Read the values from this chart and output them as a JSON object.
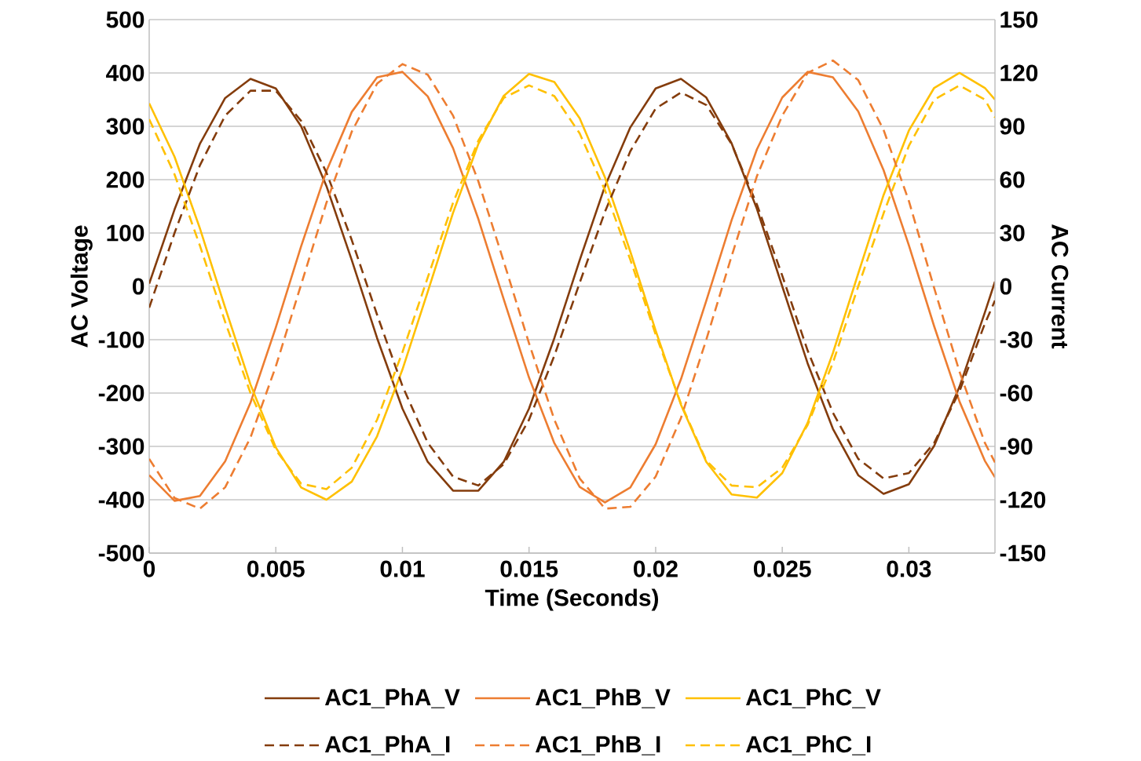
{
  "chart_data": {
    "type": "line",
    "xlabel": "Time (Seconds)",
    "ylabel": "AC Voltage",
    "y2label": "AC Current",
    "x": [
      0,
      0.001,
      0.002,
      0.003,
      0.004,
      0.005,
      0.006,
      0.007,
      0.008,
      0.009,
      0.01,
      0.011,
      0.012,
      0.013,
      0.014,
      0.015,
      0.016,
      0.017,
      0.018,
      0.019,
      0.02,
      0.021,
      0.022,
      0.023,
      0.024,
      0.025,
      0.026,
      0.027,
      0.028,
      0.029,
      0.03,
      0.031,
      0.032,
      0.033,
      0.0334
    ],
    "series": [
      {
        "name": "AC1_PhA_V",
        "color": "#843c0c",
        "values": [
          5,
          144,
          267,
          353,
          389,
          371,
          300,
          188,
          49,
          -97,
          -229,
          -329,
          -383,
          -383,
          -329,
          -229,
          -97,
          49,
          188,
          298,
          371,
          389,
          354,
          268,
          145,
          0,
          -144,
          -267,
          -354,
          -389,
          -371,
          -299,
          -188,
          -49,
          9
        ]
      },
      {
        "name": "AC1_PhB_V",
        "color": "#ed7d31",
        "values": [
          -354,
          -402,
          -393,
          -328,
          -218,
          -77,
          75,
          216,
          327,
          392,
          402,
          356,
          259,
          126,
          -24,
          -171,
          -294,
          -376,
          -405,
          -377,
          -296,
          -174,
          -27,
          124,
          257,
          354,
          402,
          392,
          328,
          218,
          77,
          -75,
          -216,
          -327,
          -358
        ]
      },
      {
        "name": "AC1_PhC_V",
        "color": "#ffc000",
        "values": [
          343,
          243,
          109,
          -40,
          -184,
          -302,
          -377,
          -400,
          -366,
          -281,
          -156,
          -10,
          138,
          267,
          357,
          398,
          383,
          315,
          204,
          65,
          -83,
          -222,
          -329,
          -390,
          -396,
          -350,
          -256,
          -125,
          24,
          171,
          292,
          372,
          400,
          372,
          350
        ]
      },
      {
        "name": "AC1_PhA_I",
        "color": "#843c0c",
        "axis": "y2",
        "line_style": "dashed",
        "values": [
          -12,
          30,
          68,
          96,
          110,
          110,
          93,
          64,
          26,
          -16,
          -56,
          -88,
          -107,
          -112,
          -100,
          -75,
          -39,
          2,
          42,
          76,
          100,
          109,
          102,
          80,
          46,
          6,
          -36,
          -71,
          -97,
          -108,
          -105,
          -88,
          -59,
          -21,
          -8
        ]
      },
      {
        "name": "AC1_PhB_I",
        "color": "#ed7d31",
        "axis": "y2",
        "line_style": "dashed",
        "values": [
          -97,
          -119,
          -125,
          -113,
          -85,
          -45,
          1,
          47,
          87,
          114,
          125,
          119,
          96,
          59,
          14,
          -32,
          -75,
          -108,
          -125,
          -124,
          -107,
          -74,
          -30,
          17,
          62,
          96,
          120,
          127,
          116,
          88,
          48,
          -1,
          -48,
          -88,
          -99
        ]
      },
      {
        "name": "AC1_PhC_I",
        "color": "#ffc000",
        "axis": "y2",
        "line_style": "dashed",
        "values": [
          94,
          63,
          23,
          -20,
          -60,
          -92,
          -111,
          -114,
          -102,
          -75,
          -37,
          5,
          47,
          82,
          106,
          113,
          107,
          86,
          54,
          15,
          -27,
          -66,
          -98,
          -112,
          -113,
          -102,
          -78,
          -43,
          0,
          41,
          79,
          105,
          113,
          105,
          95
        ]
      }
    ],
    "xlim": [
      0,
      0.0334
    ],
    "xticks": [
      0,
      0.005,
      0.01,
      0.015,
      0.02,
      0.025,
      0.03
    ],
    "ylim": [
      -500,
      500
    ],
    "yticks": [
      -500,
      -400,
      -300,
      -200,
      -100,
      0,
      100,
      200,
      300,
      400,
      500
    ],
    "y2lim": [
      -150,
      150
    ],
    "y2ticks": [
      -150,
      -120,
      -90,
      -60,
      -30,
      0,
      30,
      60,
      90,
      120,
      150
    ],
    "grid": "y",
    "legend": "bottom"
  }
}
